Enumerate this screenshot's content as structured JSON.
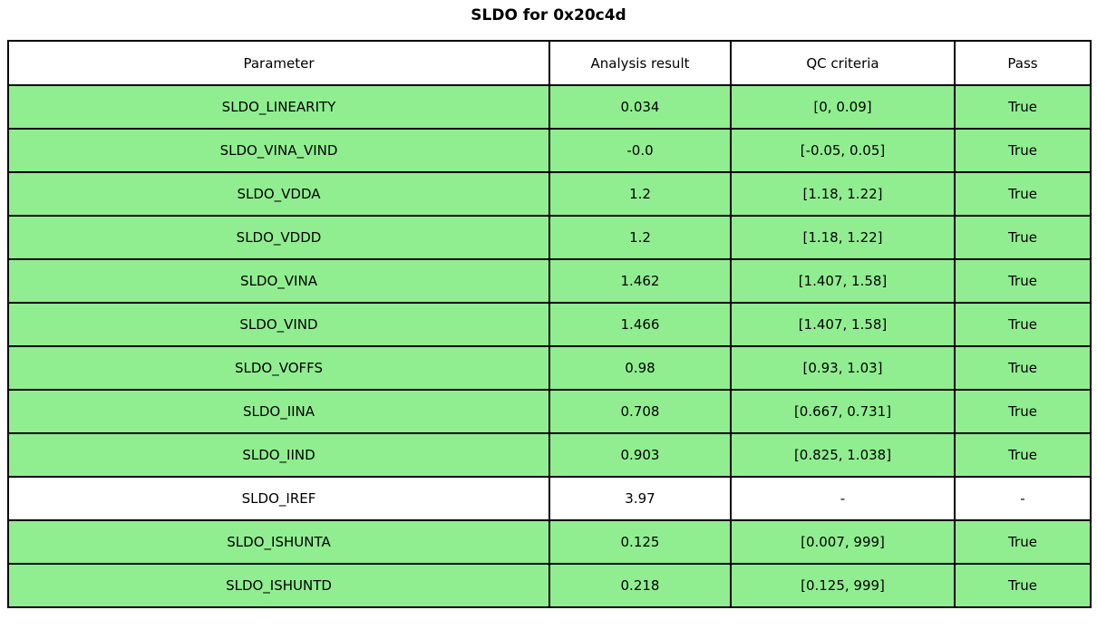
{
  "title": "SLDO for 0x20c4d",
  "colors": {
    "pass_row_green": "#90ee90",
    "neutral_row_white": "#ffffff",
    "border_black": "#000000"
  },
  "chart_data": {
    "type": "table",
    "title": "SLDO for 0x20c4d",
    "columns": [
      "Parameter",
      "Analysis result",
      "QC criteria",
      "Pass"
    ],
    "rows": [
      {
        "parameter": "SLDO_LINEARITY",
        "result": "0.034",
        "criteria": "[0, 0.09]",
        "pass": "True",
        "state": "pass"
      },
      {
        "parameter": "SLDO_VINA_VIND",
        "result": "-0.0",
        "criteria": "[-0.05, 0.05]",
        "pass": "True",
        "state": "pass"
      },
      {
        "parameter": "SLDO_VDDA",
        "result": "1.2",
        "criteria": "[1.18, 1.22]",
        "pass": "True",
        "state": "pass"
      },
      {
        "parameter": "SLDO_VDDD",
        "result": "1.2",
        "criteria": "[1.18, 1.22]",
        "pass": "True",
        "state": "pass"
      },
      {
        "parameter": "SLDO_VINA",
        "result": "1.462",
        "criteria": "[1.407, 1.58]",
        "pass": "True",
        "state": "pass"
      },
      {
        "parameter": "SLDO_VIND",
        "result": "1.466",
        "criteria": "[1.407, 1.58]",
        "pass": "True",
        "state": "pass"
      },
      {
        "parameter": "SLDO_VOFFS",
        "result": "0.98",
        "criteria": "[0.93, 1.03]",
        "pass": "True",
        "state": "pass"
      },
      {
        "parameter": "SLDO_IINA",
        "result": "0.708",
        "criteria": "[0.667, 0.731]",
        "pass": "True",
        "state": "pass"
      },
      {
        "parameter": "SLDO_IIND",
        "result": "0.903",
        "criteria": "[0.825, 1.038]",
        "pass": "True",
        "state": "pass"
      },
      {
        "parameter": "SLDO_IREF",
        "result": "3.97",
        "criteria": "-",
        "pass": "-",
        "state": "none"
      },
      {
        "parameter": "SLDO_ISHUNTA",
        "result": "0.125",
        "criteria": "[0.007, 999]",
        "pass": "True",
        "state": "pass"
      },
      {
        "parameter": "SLDO_ISHUNTD",
        "result": "0.218",
        "criteria": "[0.125, 999]",
        "pass": "True",
        "state": "pass"
      }
    ]
  }
}
